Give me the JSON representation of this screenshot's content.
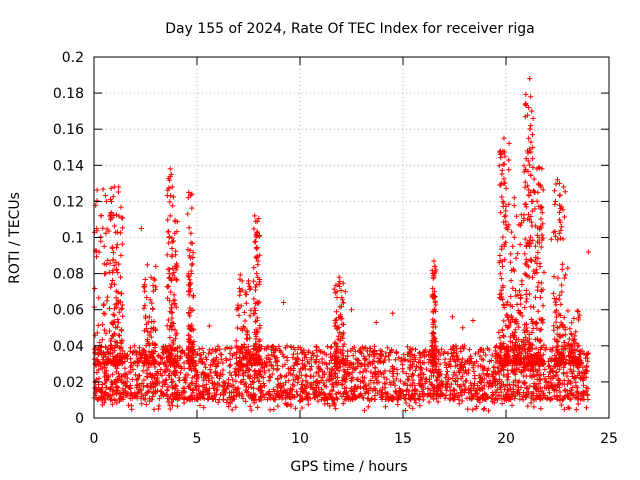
{
  "chart_data": {
    "type": "scatter",
    "title": "Day 155 of 2024, Rate Of TEC Index for receiver riga",
    "xlabel": "GPS time / hours",
    "ylabel": "ROTI / TECUs",
    "xlim": [
      0,
      25
    ],
    "ylim": [
      0,
      0.2
    ],
    "xticks": [
      0,
      5,
      10,
      15,
      20,
      25
    ],
    "yticks": [
      0,
      0.02,
      0.04,
      0.06,
      0.08,
      0.1,
      0.12,
      0.14,
      0.16,
      0.18,
      0.2
    ],
    "xtick_labels": [
      "0",
      "5",
      "10",
      "15",
      "20",
      "25"
    ],
    "ytick_labels": [
      "0",
      "0.02",
      "0.04",
      "0.06",
      "0.08",
      "0.1",
      "0.12",
      "0.14",
      "0.16",
      "0.18",
      "0.2"
    ],
    "grid": true,
    "marker": "+",
    "color": "#ff0000",
    "series": [
      {
        "name": "ROTI",
        "background_band": {
          "x_range": [
            0,
            24
          ],
          "y_range": [
            0.01,
            0.04
          ],
          "approx_points": 2600
        },
        "enhanced_bursts": [
          {
            "x_center": 0.5,
            "x_width": 1.2,
            "max": 0.13
          },
          {
            "x_center": 1.1,
            "x_width": 0.6,
            "max": 0.13
          },
          {
            "x_center": 2.7,
            "x_width": 0.6,
            "max": 0.09
          },
          {
            "x_center": 3.8,
            "x_width": 0.5,
            "max": 0.138
          },
          {
            "x_center": 4.7,
            "x_width": 0.3,
            "max": 0.125
          },
          {
            "x_center": 7.3,
            "x_width": 0.8,
            "max": 0.08
          },
          {
            "x_center": 7.9,
            "x_width": 0.3,
            "max": 0.112
          },
          {
            "x_center": 11.9,
            "x_width": 0.5,
            "max": 0.078
          },
          {
            "x_center": 16.5,
            "x_width": 0.2,
            "max": 0.087
          },
          {
            "x_center": 19.9,
            "x_width": 0.5,
            "max": 0.155
          },
          {
            "x_center": 20.5,
            "x_width": 0.6,
            "max": 0.12
          },
          {
            "x_center": 21.1,
            "x_width": 0.5,
            "max": 0.188
          },
          {
            "x_center": 21.6,
            "x_width": 0.5,
            "max": 0.14
          },
          {
            "x_center": 22.6,
            "x_width": 0.6,
            "max": 0.13
          },
          {
            "x_center": 23.3,
            "x_width": 0.6,
            "max": 0.06
          }
        ],
        "points": [
          {
            "x": 1.0,
            "y": 0.128
          },
          {
            "x": 1.2,
            "y": 0.128
          },
          {
            "x": 0.6,
            "y": 0.12
          },
          {
            "x": 0.8,
            "y": 0.121
          },
          {
            "x": 0.35,
            "y": 0.112
          },
          {
            "x": 2.3,
            "y": 0.105
          },
          {
            "x": 3.0,
            "y": 0.084
          },
          {
            "x": 3.7,
            "y": 0.138
          },
          {
            "x": 3.75,
            "y": 0.135
          },
          {
            "x": 3.8,
            "y": 0.128
          },
          {
            "x": 3.7,
            "y": 0.112
          },
          {
            "x": 3.65,
            "y": 0.1
          },
          {
            "x": 4.6,
            "y": 0.125
          },
          {
            "x": 4.75,
            "y": 0.124
          },
          {
            "x": 4.55,
            "y": 0.113
          },
          {
            "x": 4.8,
            "y": 0.089
          },
          {
            "x": 5.6,
            "y": 0.051
          },
          {
            "x": 7.8,
            "y": 0.112
          },
          {
            "x": 7.85,
            "y": 0.109
          },
          {
            "x": 7.95,
            "y": 0.085
          },
          {
            "x": 7.9,
            "y": 0.08
          },
          {
            "x": 7.1,
            "y": 0.07
          },
          {
            "x": 9.2,
            "y": 0.064
          },
          {
            "x": 11.9,
            "y": 0.078
          },
          {
            "x": 12.2,
            "y": 0.07
          },
          {
            "x": 12.5,
            "y": 0.06
          },
          {
            "x": 16.5,
            "y": 0.087
          },
          {
            "x": 16.55,
            "y": 0.084
          },
          {
            "x": 16.6,
            "y": 0.082
          },
          {
            "x": 16.5,
            "y": 0.078
          },
          {
            "x": 19.9,
            "y": 0.155
          },
          {
            "x": 19.95,
            "y": 0.145
          },
          {
            "x": 19.9,
            "y": 0.13
          },
          {
            "x": 19.85,
            "y": 0.12
          },
          {
            "x": 20.0,
            "y": 0.107
          },
          {
            "x": 19.7,
            "y": 0.09
          },
          {
            "x": 21.15,
            "y": 0.188
          },
          {
            "x": 21.2,
            "y": 0.178
          },
          {
            "x": 21.1,
            "y": 0.172
          },
          {
            "x": 21.25,
            "y": 0.17
          },
          {
            "x": 21.2,
            "y": 0.162
          },
          {
            "x": 21.1,
            "y": 0.155
          },
          {
            "x": 21.15,
            "y": 0.149
          },
          {
            "x": 21.2,
            "y": 0.125
          },
          {
            "x": 21.6,
            "y": 0.139
          },
          {
            "x": 21.5,
            "y": 0.138
          },
          {
            "x": 21.4,
            "y": 0.125
          },
          {
            "x": 21.7,
            "y": 0.128
          },
          {
            "x": 21.3,
            "y": 0.12
          },
          {
            "x": 20.4,
            "y": 0.122
          },
          {
            "x": 22.5,
            "y": 0.132
          },
          {
            "x": 22.6,
            "y": 0.13
          },
          {
            "x": 22.8,
            "y": 0.128
          },
          {
            "x": 22.4,
            "y": 0.12
          },
          {
            "x": 22.7,
            "y": 0.117
          },
          {
            "x": 22.2,
            "y": 0.099
          },
          {
            "x": 23.0,
            "y": 0.083
          },
          {
            "x": 24.0,
            "y": 0.092
          },
          {
            "x": 23.9,
            "y": 0.035
          },
          {
            "x": 18.4,
            "y": 0.054
          },
          {
            "x": 17.4,
            "y": 0.056
          },
          {
            "x": 17.9,
            "y": 0.05
          },
          {
            "x": 14.5,
            "y": 0.058
          },
          {
            "x": 13.7,
            "y": 0.053
          }
        ]
      }
    ]
  }
}
